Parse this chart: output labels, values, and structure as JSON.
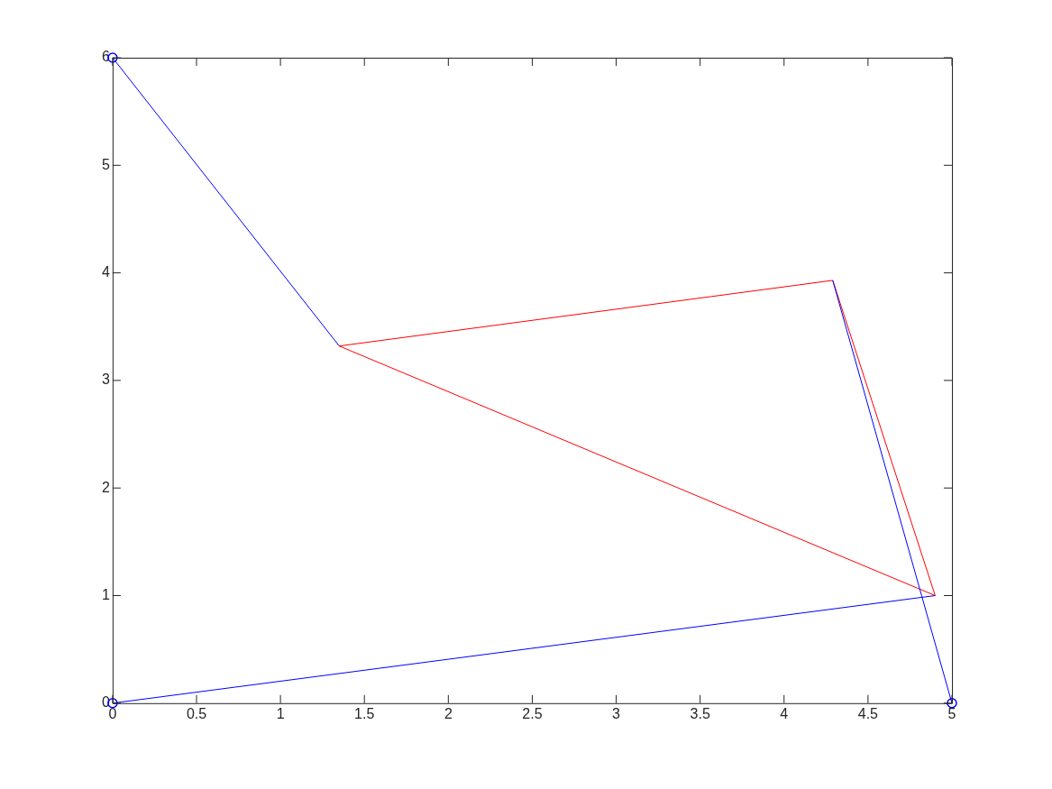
{
  "chart_data": {
    "type": "line",
    "xlim": [
      0,
      5
    ],
    "ylim": [
      0,
      6
    ],
    "xticks": [
      0,
      0.5,
      1,
      1.5,
      2,
      2.5,
      3,
      3.5,
      4,
      4.5,
      5
    ],
    "yticks": [
      0,
      1,
      2,
      3,
      4,
      5,
      6
    ],
    "marker": "none",
    "legend": false,
    "series": [
      {
        "color": "#0000ff",
        "x": [
          0,
          1.35
        ],
        "values": [
          6,
          3.32
        ]
      },
      {
        "color": "#0000ff",
        "x": [
          0,
          4.9
        ],
        "values": [
          0,
          1.0
        ]
      },
      {
        "color": "#0000ff",
        "x": [
          5,
          4.29
        ],
        "values": [
          0,
          3.93
        ]
      },
      {
        "color": "#ff0000",
        "x": [
          1.35,
          4.29
        ],
        "values": [
          3.32,
          3.93
        ]
      },
      {
        "color": "#ff0000",
        "x": [
          4.29,
          4.9
        ],
        "values": [
          3.93,
          1.0
        ]
      },
      {
        "color": "#ff0000",
        "x": [
          4.9,
          1.35
        ],
        "values": [
          1.0,
          3.32
        ]
      },
      {
        "type": "scatter",
        "color": "#0000ff",
        "marker": "circle",
        "x": [
          0,
          0,
          5
        ],
        "values": [
          0,
          6,
          0
        ]
      }
    ]
  }
}
